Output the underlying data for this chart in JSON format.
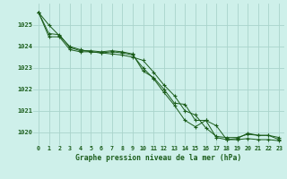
{
  "title": "Graphe pression niveau de la mer (hPa)",
  "bg_color": "#cef0ea",
  "grid_color": "#aad4cc",
  "line_color": "#1a5c1a",
  "x_labels": [
    "0",
    "1",
    "2",
    "3",
    "4",
    "5",
    "6",
    "7",
    "8",
    "9",
    "10",
    "11",
    "12",
    "13",
    "14",
    "15",
    "16",
    "17",
    "18",
    "19",
    "20",
    "21",
    "22",
    "23"
  ],
  "y_min": 1019.4,
  "y_max": 1026.0,
  "y_ticks": [
    1020,
    1021,
    1022,
    1023,
    1024,
    1025
  ],
  "series1": [
    1025.6,
    1025.0,
    1024.5,
    1024.0,
    1023.85,
    1023.75,
    1023.7,
    1023.65,
    1023.6,
    1023.5,
    1023.35,
    1022.8,
    1022.2,
    1021.7,
    1021.0,
    1020.8,
    1020.2,
    1019.8,
    1019.75,
    1019.75,
    1019.9,
    1019.85,
    1019.85,
    1019.75
  ],
  "series2": [
    1025.6,
    1024.6,
    1024.55,
    1023.95,
    1023.8,
    1023.8,
    1023.75,
    1023.8,
    1023.75,
    1023.65,
    1022.85,
    1022.55,
    1022.0,
    1021.35,
    1021.3,
    1020.55,
    1020.55,
    1020.3,
    1019.65,
    1019.65,
    1019.7,
    1019.65,
    1019.65,
    1019.6
  ],
  "series3": [
    1025.6,
    1024.45,
    1024.45,
    1023.85,
    1023.75,
    1023.75,
    1023.7,
    1023.75,
    1023.7,
    1023.6,
    1023.0,
    1022.5,
    1021.85,
    1021.25,
    1020.55,
    1020.25,
    1020.55,
    1019.75,
    1019.65,
    1019.7,
    1019.95,
    1019.85,
    1019.85,
    1019.65
  ]
}
